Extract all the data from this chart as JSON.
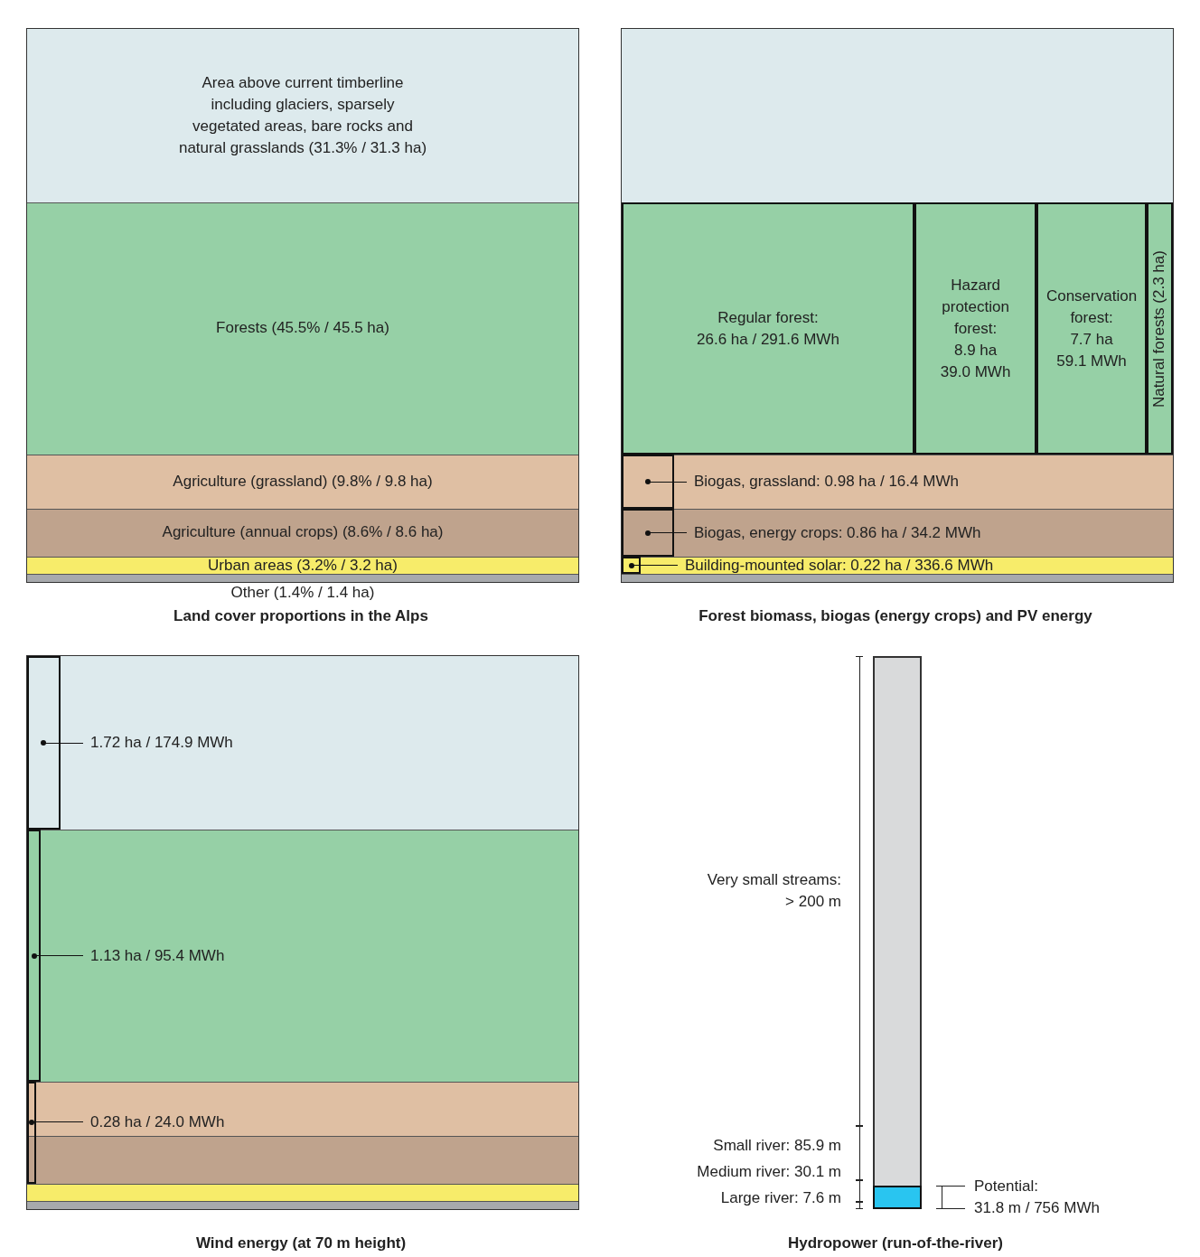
{
  "chart_data": [
    {
      "type": "other",
      "title": "Land cover proportions in the Alps",
      "categories": [
        "Area above current timberline\nincluding glaciers, sparsely\nvegetated areas, bare rocks and\nnatural grasslands (31.3% / 31.3 ha)",
        "Forests (45.5% / 45.5 ha)",
        "Agriculture (grassland) (9.8% / 9.8 ha)",
        "Agriculture (annual crops) (8.6% / 8.6 ha)",
        "Urban areas (3.2% / 3.2 ha)",
        "Other (1.4% / 1.4 ha)"
      ],
      "values": [
        31.3,
        45.5,
        9.8,
        8.6,
        3.2,
        1.4
      ],
      "data_labels": true,
      "colors": [
        "#ddeaed",
        "#96d0a6",
        "#dfbfa3",
        "#bfa38d",
        "#f7ec6a",
        "#a7a9ac"
      ]
    },
    {
      "type": "other",
      "title": "Forest biomass, biogas (energy crops) and PV energy",
      "annotations": [
        "Regular forest:\n26.6 ha / 291.6 MWh",
        "Hazard\nprotection\nforest:\n8.9 ha\n39.0 MWh",
        "Conservation\nforest:\n7.7 ha\n59.1 MWh",
        "Natural forests (2.3 ha)",
        "Biogas, grassland: 0.98 ha / 16.4 MWh",
        "Biogas, energy crops: 0.86 ha / 34.2 MWh",
        "Building-mounted solar: 0.22 ha / 336.6 MWh"
      ]
    },
    {
      "type": "other",
      "title": "Wind energy (at 70 m height)",
      "annotations": [
        "1.72 ha / 174.9 MWh",
        "1.13 ha / 95.4 MWh",
        "0.28 ha / 24.0 MWh"
      ]
    },
    {
      "type": "other",
      "title": "Hydropower (run-of-the-river)",
      "annotations": [
        "Very small streams:\n> 200 m",
        "Small river: 85.9 m",
        "Medium river: 30.1 m",
        "Large river: 7.6 m",
        "Potential:\n31.8 m / 756 MWh"
      ]
    }
  ]
}
